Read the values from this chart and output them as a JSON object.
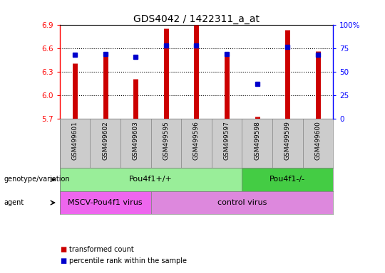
{
  "title": "GDS4042 / 1422311_a_at",
  "samples": [
    "GSM499601",
    "GSM499602",
    "GSM499603",
    "GSM499595",
    "GSM499596",
    "GSM499597",
    "GSM499598",
    "GSM499599",
    "GSM499600"
  ],
  "transformed_count": [
    6.41,
    6.55,
    6.21,
    6.85,
    6.9,
    6.55,
    5.73,
    6.83,
    6.56
  ],
  "percentile_rank": [
    68,
    69,
    66,
    78,
    78,
    69,
    37,
    76,
    68
  ],
  "y_min": 5.7,
  "y_max": 6.9,
  "y_ticks": [
    5.7,
    6.0,
    6.3,
    6.6,
    6.9
  ],
  "right_y_ticks": [
    0,
    25,
    50,
    75,
    100
  ],
  "right_y_tick_labels": [
    "0",
    "25",
    "50",
    "75",
    "100%"
  ],
  "bar_color": "#cc0000",
  "dot_color": "#0000cc",
  "background_color": "#ffffff",
  "sample_label_bg": "#cccccc",
  "genotype_groups": [
    {
      "label": "Pou4f1+/+",
      "start": 0,
      "end": 6,
      "color": "#99ee99"
    },
    {
      "label": "Pou4f1-/-",
      "start": 6,
      "end": 9,
      "color": "#44cc44"
    }
  ],
  "agent_groups": [
    {
      "label": "MSCV-Pou4f1 virus",
      "start": 0,
      "end": 3,
      "color": "#ee66ee"
    },
    {
      "label": "control virus",
      "start": 3,
      "end": 9,
      "color": "#dd88dd"
    }
  ],
  "legend_items": [
    {
      "label": "transformed count",
      "color": "#cc0000"
    },
    {
      "label": "percentile rank within the sample",
      "color": "#0000cc"
    }
  ],
  "row_label_genotype": "genotype/variation",
  "row_label_agent": "agent"
}
